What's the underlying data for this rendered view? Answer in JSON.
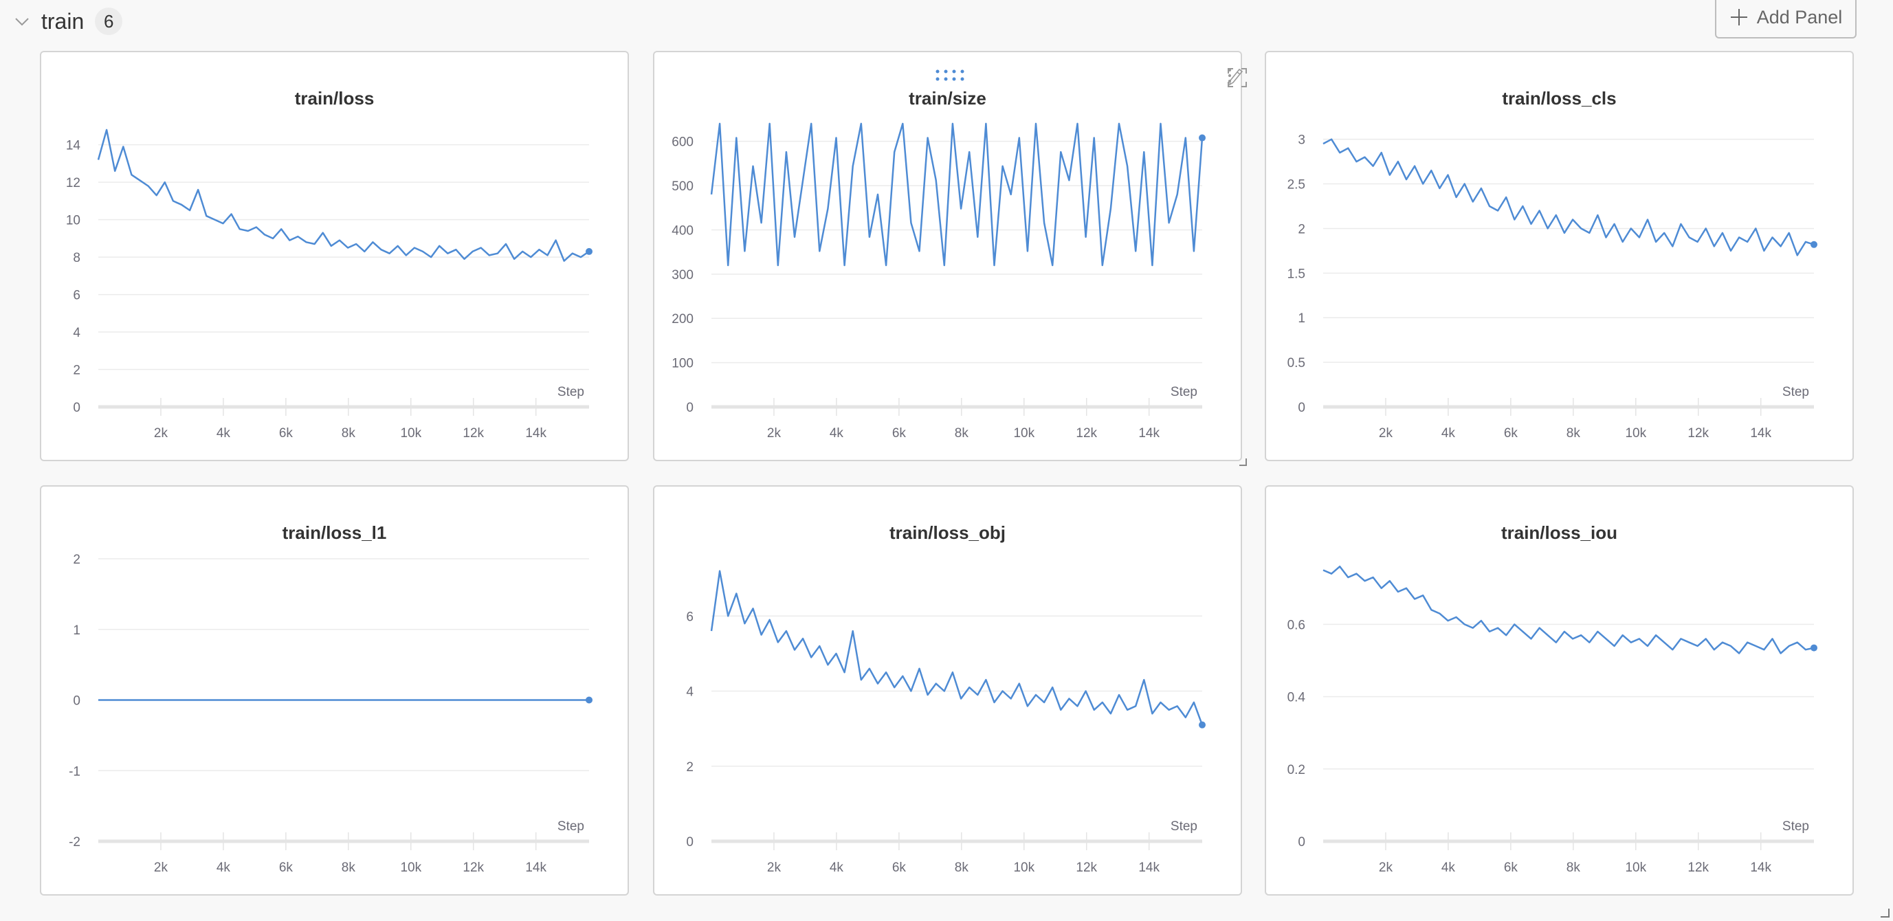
{
  "section": {
    "title": "train",
    "count": "6",
    "add_panel_label": "Add Panel"
  },
  "colors": {
    "line": "#4e8bd4",
    "grid": "#ebebeb",
    "axis": "#e4e4e4",
    "label": "#6b6b76"
  },
  "icons": {
    "collapse": "chevron-down-icon",
    "add": "plus-icon",
    "drag": "drag-handle-icon",
    "edit": "pencil-icon",
    "fullscreen": "fullscreen-icon",
    "more": "more-vertical-icon",
    "resize": "resize-handle-icon"
  },
  "chart_data": [
    {
      "type": "line",
      "title": "train/loss",
      "xlabel": "Step",
      "x_range": [
        0,
        15700
      ],
      "xticks": [
        2000,
        4000,
        6000,
        8000,
        10000,
        12000,
        14000
      ],
      "xtick_labels": [
        "2k",
        "4k",
        "6k",
        "8k",
        "10k",
        "12k",
        "14k"
      ],
      "ylim": [
        0,
        15.2
      ],
      "yticks": [
        0,
        2,
        4,
        6,
        8,
        10,
        12,
        14
      ],
      "ytick_labels": [
        "0",
        "2",
        "4",
        "6",
        "8",
        "10",
        "12",
        "14"
      ],
      "grid": true,
      "values": [
        13.2,
        14.8,
        12.6,
        13.9,
        12.4,
        12.1,
        11.8,
        11.3,
        12.0,
        11.0,
        10.8,
        10.5,
        11.6,
        10.2,
        10.0,
        9.8,
        10.3,
        9.5,
        9.4,
        9.6,
        9.2,
        9.0,
        9.5,
        8.9,
        9.1,
        8.8,
        8.7,
        9.3,
        8.6,
        8.9,
        8.5,
        8.7,
        8.3,
        8.8,
        8.4,
        8.2,
        8.6,
        8.1,
        8.5,
        8.3,
        8.0,
        8.6,
        8.2,
        8.4,
        7.9,
        8.3,
        8.5,
        8.1,
        8.2,
        8.7,
        7.9,
        8.3,
        8.0,
        8.4,
        8.1,
        8.9,
        7.8,
        8.2,
        8.0,
        8.3
      ]
    },
    {
      "type": "line",
      "title": "train/size",
      "xlabel": "Step",
      "x_range": [
        0,
        15700
      ],
      "xticks": [
        2000,
        4000,
        6000,
        8000,
        10000,
        12000,
        14000
      ],
      "xtick_labels": [
        "2k",
        "4k",
        "6k",
        "8k",
        "10k",
        "12k",
        "14k"
      ],
      "ylim": [
        0,
        643
      ],
      "yticks": [
        0,
        100,
        200,
        300,
        400,
        500,
        600
      ],
      "ytick_labels": [
        "0",
        "100",
        "200",
        "300",
        "400",
        "500",
        "600"
      ],
      "grid": true,
      "values": [
        480,
        640,
        320,
        608,
        352,
        544,
        416,
        640,
        320,
        576,
        384,
        512,
        640,
        352,
        448,
        608,
        320,
        544,
        640,
        384,
        480,
        320,
        576,
        640,
        416,
        352,
        608,
        512,
        320,
        640,
        448,
        576,
        384,
        640,
        320,
        544,
        480,
        608,
        352,
        640,
        416,
        320,
        576,
        512,
        640,
        384,
        608,
        320,
        448,
        640,
        544,
        352,
        576,
        320,
        640,
        416,
        480,
        608,
        352,
        608
      ]
    },
    {
      "type": "line",
      "title": "train/loss_cls",
      "xlabel": "Step",
      "x_range": [
        0,
        15700
      ],
      "xticks": [
        2000,
        4000,
        6000,
        8000,
        10000,
        12000,
        14000
      ],
      "xtick_labels": [
        "2k",
        "4k",
        "6k",
        "8k",
        "10k",
        "12k",
        "14k"
      ],
      "ylim": [
        0,
        3.19
      ],
      "yticks": [
        0,
        0.5,
        1,
        1.5,
        2,
        2.5,
        3
      ],
      "ytick_labels": [
        "0",
        "0.5",
        "1",
        "1.5",
        "2",
        "2.5",
        "3"
      ],
      "grid": true,
      "values": [
        2.95,
        3.0,
        2.85,
        2.9,
        2.75,
        2.8,
        2.7,
        2.85,
        2.6,
        2.75,
        2.55,
        2.7,
        2.5,
        2.65,
        2.45,
        2.6,
        2.35,
        2.5,
        2.3,
        2.45,
        2.25,
        2.2,
        2.35,
        2.1,
        2.25,
        2.05,
        2.2,
        2.0,
        2.15,
        1.95,
        2.1,
        2.0,
        1.95,
        2.15,
        1.9,
        2.05,
        1.85,
        2.0,
        1.9,
        2.1,
        1.85,
        1.95,
        1.8,
        2.05,
        1.9,
        1.85,
        2.0,
        1.8,
        1.95,
        1.75,
        1.9,
        1.85,
        2.0,
        1.75,
        1.9,
        1.8,
        1.95,
        1.7,
        1.85,
        1.82
      ]
    },
    {
      "type": "line",
      "title": "train/loss_l1",
      "xlabel": "Step",
      "x_range": [
        0,
        15700
      ],
      "xticks": [
        2000,
        4000,
        6000,
        8000,
        10000,
        12000,
        14000
      ],
      "xtick_labels": [
        "2k",
        "4k",
        "6k",
        "8k",
        "10k",
        "12k",
        "14k"
      ],
      "ylim": [
        -2,
        2
      ],
      "yticks": [
        -2,
        -1,
        0,
        1,
        2
      ],
      "ytick_labels": [
        "-2",
        "-1",
        "0",
        "1",
        "2"
      ],
      "grid": true,
      "values": [
        0,
        0,
        0,
        0,
        0,
        0,
        0,
        0,
        0,
        0,
        0,
        0,
        0,
        0,
        0,
        0,
        0,
        0,
        0,
        0,
        0,
        0,
        0,
        0,
        0,
        0,
        0,
        0,
        0,
        0,
        0,
        0,
        0,
        0,
        0,
        0,
        0,
        0,
        0,
        0,
        0,
        0,
        0,
        0,
        0,
        0,
        0,
        0,
        0,
        0,
        0,
        0,
        0,
        0,
        0,
        0,
        0,
        0,
        0,
        0
      ]
    },
    {
      "type": "line",
      "title": "train/loss_obj",
      "xlabel": "Step",
      "x_range": [
        0,
        15700
      ],
      "xticks": [
        2000,
        4000,
        6000,
        8000,
        10000,
        12000,
        14000
      ],
      "xtick_labels": [
        "2k",
        "4k",
        "6k",
        "8k",
        "10k",
        "12k",
        "14k"
      ],
      "ylim": [
        0,
        7.58
      ],
      "yticks": [
        0,
        2,
        4,
        6
      ],
      "ytick_labels": [
        "0",
        "2",
        "4",
        "6"
      ],
      "grid": true,
      "values": [
        5.6,
        7.2,
        6.0,
        6.6,
        5.8,
        6.2,
        5.5,
        5.9,
        5.3,
        5.6,
        5.1,
        5.4,
        4.9,
        5.2,
        4.7,
        5.0,
        4.5,
        5.6,
        4.3,
        4.6,
        4.2,
        4.5,
        4.1,
        4.4,
        4.0,
        4.6,
        3.9,
        4.2,
        4.0,
        4.5,
        3.8,
        4.1,
        3.9,
        4.3,
        3.7,
        4.0,
        3.8,
        4.2,
        3.6,
        3.9,
        3.7,
        4.1,
        3.5,
        3.8,
        3.6,
        4.0,
        3.5,
        3.7,
        3.4,
        3.9,
        3.5,
        3.6,
        4.3,
        3.4,
        3.7,
        3.5,
        3.6,
        3.3,
        3.7,
        3.1
      ]
    },
    {
      "type": "line",
      "title": "train/loss_iou",
      "xlabel": "Step",
      "x_range": [
        0,
        15700
      ],
      "xticks": [
        2000,
        4000,
        6000,
        8000,
        10000,
        12000,
        14000
      ],
      "xtick_labels": [
        "2k",
        "4k",
        "6k",
        "8k",
        "10k",
        "12k",
        "14k"
      ],
      "ylim": [
        0,
        0.787
      ],
      "yticks": [
        0,
        0.2,
        0.4,
        0.6
      ],
      "ytick_labels": [
        "0",
        "0.2",
        "0.4",
        "0.6"
      ],
      "grid": true,
      "values": [
        0.75,
        0.74,
        0.76,
        0.73,
        0.74,
        0.72,
        0.73,
        0.7,
        0.72,
        0.69,
        0.7,
        0.67,
        0.68,
        0.64,
        0.63,
        0.61,
        0.62,
        0.6,
        0.59,
        0.61,
        0.58,
        0.59,
        0.57,
        0.6,
        0.58,
        0.56,
        0.59,
        0.57,
        0.55,
        0.58,
        0.56,
        0.57,
        0.55,
        0.58,
        0.56,
        0.54,
        0.57,
        0.55,
        0.56,
        0.54,
        0.57,
        0.55,
        0.53,
        0.56,
        0.55,
        0.54,
        0.56,
        0.53,
        0.55,
        0.54,
        0.52,
        0.55,
        0.54,
        0.53,
        0.56,
        0.52,
        0.54,
        0.55,
        0.53,
        0.535
      ]
    }
  ]
}
